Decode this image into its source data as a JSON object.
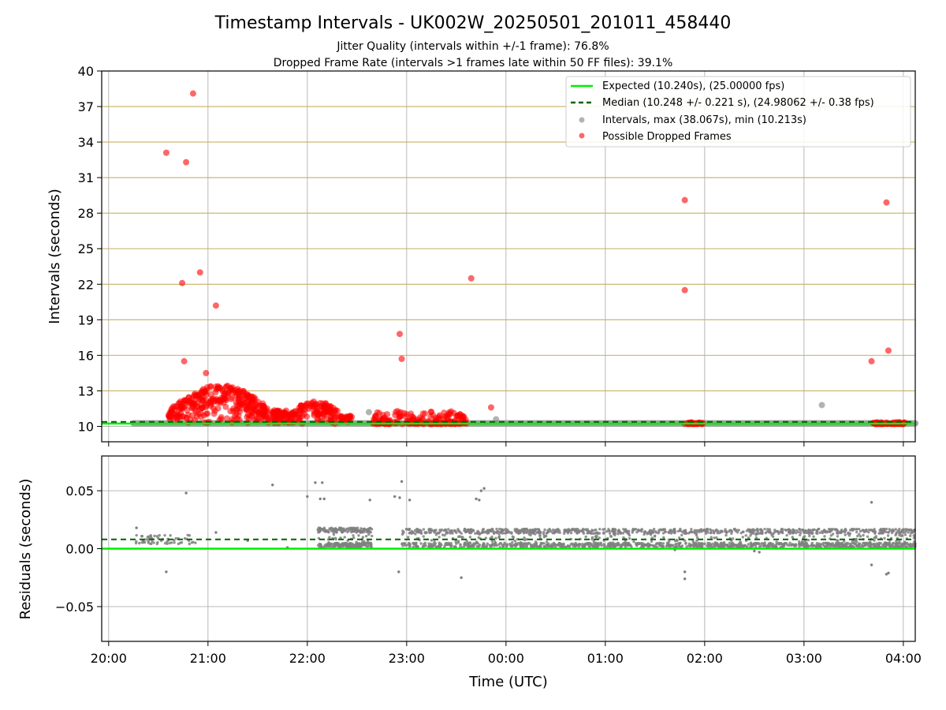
{
  "figure": {
    "title": "Timestamp Intervals - UK002W_20250501_201011_458440",
    "subtitle_1": "Jitter Quality (intervals within +/-1 frame): 76.8%",
    "subtitle_2": "Dropped Frame Rate (intervals >1 frames late within 50 FF files): 39.1%",
    "xlabel": "Time (UTC)"
  },
  "colors": {
    "expected": "#00ee00",
    "median": "#006400",
    "intervals": "#808080",
    "dropped": "#ff0000",
    "hgrid_top": "#c8b060",
    "grid": "#b0b0b0"
  },
  "chart_data": [
    {
      "type": "scatter",
      "panel": "intervals",
      "ylabel": "Intervals (seconds)",
      "x_unit": "hours since 20:00 UTC",
      "xlim": [
        -0.07,
        8.12
      ],
      "ylim": [
        8.7,
        40
      ],
      "y_ticks": [
        10,
        13,
        16,
        19,
        22,
        25,
        28,
        31,
        34,
        37,
        40
      ],
      "x_ticks": [
        0,
        1,
        2,
        3,
        4,
        5,
        6,
        7,
        8
      ],
      "x_tick_labels": [
        "20:00",
        "21:00",
        "22:00",
        "23:00",
        "00:00",
        "01:00",
        "02:00",
        "03:00",
        "04:00"
      ],
      "grid": true,
      "legend_position": "top-right",
      "legend": [
        "Expected (10.240s), (25.00000 fps)",
        "Median (10.248 +/- 0.221 s), (24.98062 +/- 0.38 fps)",
        "Intervals, max (38.067s), min (10.213s)",
        "Possible Dropped Frames"
      ],
      "expected_value": 10.24,
      "median_value": 10.248,
      "intervals_baseline": {
        "x_range": [
          0.25,
          8.12
        ],
        "y": 10.26
      },
      "intervals_outliers": [
        {
          "x": 2.62,
          "y": 11.2
        },
        {
          "x": 3.9,
          "y": 10.6
        },
        {
          "x": 7.18,
          "y": 11.8
        }
      ],
      "dropped_frames_outliers": [
        {
          "x": 0.58,
          "y": 33.1
        },
        {
          "x": 0.78,
          "y": 32.3
        },
        {
          "x": 0.85,
          "y": 38.1
        },
        {
          "x": 0.92,
          "y": 23.0
        },
        {
          "x": 0.74,
          "y": 22.1
        },
        {
          "x": 1.08,
          "y": 20.2
        },
        {
          "x": 0.76,
          "y": 15.5
        },
        {
          "x": 0.98,
          "y": 14.5
        },
        {
          "x": 2.93,
          "y": 17.8
        },
        {
          "x": 2.95,
          "y": 15.7
        },
        {
          "x": 3.65,
          "y": 22.5
        },
        {
          "x": 3.85,
          "y": 11.6
        },
        {
          "x": 5.8,
          "y": 29.1
        },
        {
          "x": 5.8,
          "y": 21.5
        },
        {
          "x": 7.68,
          "y": 15.5
        },
        {
          "x": 7.83,
          "y": 28.9
        },
        {
          "x": 7.85,
          "y": 16.4
        }
      ],
      "dropped_frames_clusters": [
        {
          "x_range": [
            0.6,
            1.8
          ],
          "y_range": [
            10.2,
            13.5
          ],
          "count": 380
        },
        {
          "x_range": [
            1.8,
            2.45
          ],
          "y_range": [
            10.2,
            12.2
          ],
          "count": 160
        },
        {
          "x_range": [
            2.65,
            3.6
          ],
          "y_range": [
            10.2,
            11.3
          ],
          "count": 180
        },
        {
          "x_range": [
            5.8,
            5.98
          ],
          "y_range": [
            10.2,
            10.35
          ],
          "count": 40
        },
        {
          "x_range": [
            7.68,
            8.02
          ],
          "y_range": [
            10.2,
            10.35
          ],
          "count": 60
        }
      ]
    },
    {
      "type": "scatter",
      "panel": "residuals",
      "ylabel": "Residuals (seconds)",
      "x_unit": "hours since 20:00 UTC",
      "xlim": [
        -0.07,
        8.12
      ],
      "ylim": [
        -0.08,
        0.08
      ],
      "y_ticks": [
        -0.05,
        0.0,
        0.05
      ],
      "y_tick_labels": [
        "−0.05",
        "0.00",
        "0.05"
      ],
      "x_ticks": [
        0,
        1,
        2,
        3,
        4,
        5,
        6,
        7,
        8
      ],
      "x_tick_labels": [
        "20:00",
        "21:00",
        "22:00",
        "23:00",
        "00:00",
        "01:00",
        "02:00",
        "03:00",
        "04:00"
      ],
      "grid": true,
      "expected_value": 0.0,
      "median_value": 0.008,
      "band": {
        "x_range": [
          3.6,
          8.12
        ],
        "y_range": [
          0.001,
          0.017
        ],
        "count": 1700
      },
      "band_early": {
        "x_range": [
          0.25,
          0.9
        ],
        "y_range": [
          0.004,
          0.012
        ],
        "count": 60
      },
      "band_mid": {
        "x_range": [
          2.1,
          2.65
        ],
        "y_range": [
          0.001,
          0.018
        ],
        "count": 300
      },
      "band_mid2": {
        "x_range": [
          2.95,
          3.6
        ],
        "y_range": [
          0.001,
          0.017
        ],
        "count": 200
      },
      "outliers": [
        {
          "x": 0.28,
          "y": 0.018
        },
        {
          "x": 0.58,
          "y": -0.02
        },
        {
          "x": 0.78,
          "y": 0.048
        },
        {
          "x": 1.08,
          "y": 0.014
        },
        {
          "x": 1.65,
          "y": 0.055
        },
        {
          "x": 2.0,
          "y": 0.045
        },
        {
          "x": 2.08,
          "y": 0.057
        },
        {
          "x": 2.15,
          "y": 0.057
        },
        {
          "x": 2.13,
          "y": 0.043
        },
        {
          "x": 2.17,
          "y": 0.043
        },
        {
          "x": 2.63,
          "y": 0.042
        },
        {
          "x": 2.88,
          "y": 0.045
        },
        {
          "x": 2.92,
          "y": -0.02
        },
        {
          "x": 2.93,
          "y": 0.044
        },
        {
          "x": 2.95,
          "y": 0.058
        },
        {
          "x": 3.03,
          "y": 0.042
        },
        {
          "x": 3.55,
          "y": -0.025
        },
        {
          "x": 3.7,
          "y": 0.043
        },
        {
          "x": 3.75,
          "y": 0.05
        },
        {
          "x": 3.78,
          "y": 0.052
        },
        {
          "x": 3.73,
          "y": 0.042
        },
        {
          "x": 5.8,
          "y": -0.02
        },
        {
          "x": 5.8,
          "y": -0.026
        },
        {
          "x": 7.68,
          "y": 0.04
        },
        {
          "x": 7.68,
          "y": -0.014
        },
        {
          "x": 7.83,
          "y": -0.022
        },
        {
          "x": 7.85,
          "y": -0.021
        },
        {
          "x": 6.55,
          "y": -0.003
        },
        {
          "x": 6.5,
          "y": -0.002
        },
        {
          "x": 5.7,
          "y": -0.001
        },
        {
          "x": 1.4,
          "y": 0.007
        },
        {
          "x": 1.8,
          "y": 0.001
        },
        {
          "x": 2.5,
          "y": 0.003
        }
      ]
    }
  ]
}
